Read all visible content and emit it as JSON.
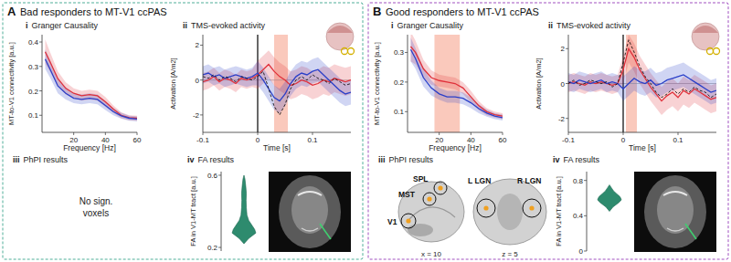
{
  "panels": [
    {
      "letter": "A",
      "title": "Bad responders to MT-V1 ccPAS",
      "phpi": {
        "numeral": "iii",
        "title": "PhPI results",
        "text": [
          "No sign.",
          "voxels"
        ]
      }
    },
    {
      "letter": "B",
      "title": "Good responders to MT-V1 ccPAS",
      "phpi": {
        "numeral": "iii",
        "title": "PhPI results",
        "regions": [
          "SPL",
          "MST",
          "V1",
          "L LGN",
          "R LGN"
        ],
        "slices": [
          "x = 10",
          "z = 5"
        ]
      }
    }
  ],
  "chart_data": [
    {
      "type": "line",
      "numeral": "i",
      "title": "Granger Causality",
      "xlabel": "Frequency [Hz]",
      "ylabel": "MT-to-V1 connectivity [a.u.]",
      "x": [
        2,
        5,
        10,
        15,
        20,
        25,
        30,
        35,
        40,
        45,
        50,
        55,
        60
      ],
      "xlim": [
        0,
        60
      ],
      "xticks": [
        20,
        40,
        60
      ],
      "ylim": [
        0.03,
        0.43
      ],
      "yticks": [
        0.1,
        0.2,
        0.3,
        0.4
      ],
      "series": [
        {
          "color": "#e0303a",
          "values": [
            0.36,
            0.32,
            0.25,
            0.21,
            0.19,
            0.18,
            0.185,
            0.18,
            0.155,
            0.125,
            0.1,
            0.09,
            0.088
          ],
          "band": [
            0.05,
            0.04,
            0.03,
            0.025,
            0.02,
            0.02,
            0.02,
            0.02,
            0.02,
            0.015,
            0.012,
            0.01,
            0.01
          ]
        },
        {
          "color": "#2a3fc8",
          "values": [
            0.33,
            0.29,
            0.22,
            0.19,
            0.17,
            0.165,
            0.17,
            0.165,
            0.14,
            0.115,
            0.098,
            0.088,
            0.085
          ],
          "band": [
            0.04,
            0.035,
            0.03,
            0.025,
            0.02,
            0.02,
            0.02,
            0.02,
            0.018,
            0.015,
            0.012,
            0.01,
            0.01
          ]
        }
      ]
    },
    {
      "type": "line",
      "numeral": "ii",
      "title": "TMS-evoked activity",
      "xlabel": "Time [s]",
      "ylabel": "Activation [A/m2]",
      "x": [
        -0.1,
        -0.09,
        -0.08,
        -0.07,
        -0.06,
        -0.05,
        -0.04,
        -0.03,
        -0.02,
        -0.01,
        0,
        0.01,
        0.02,
        0.03,
        0.04,
        0.05,
        0.06,
        0.07,
        0.08,
        0.09,
        0.1,
        0.11,
        0.12,
        0.13,
        0.14,
        0.15,
        0.16,
        0.17
      ],
      "xlim": [
        -0.1,
        0.17
      ],
      "xticks": [
        -0.1,
        0,
        0.1
      ],
      "ylim": [
        -3,
        2.6
      ],
      "yticks": [
        -2,
        0,
        2
      ],
      "shaded_range": [
        0.03,
        0.055
      ],
      "vline": 0,
      "hline": 0,
      "series": [
        {
          "color": "#e0303a",
          "values": [
            -0.1,
            0,
            0.2,
            -0.1,
            0.1,
            0,
            -0.2,
            0.1,
            0,
            0.1,
            0.3,
            0.6,
            0.9,
            0.5,
            0.2,
            0,
            -0.3,
            -0.2,
            0,
            -0.1,
            -0.3,
            -0.2,
            0,
            -0.1,
            0.1,
            0,
            -0.1,
            0
          ],
          "band": [
            0.5,
            0.5,
            0.5,
            0.5,
            0.5,
            0.5,
            0.5,
            0.5,
            0.5,
            0.5,
            0.8,
            0.8,
            0.8,
            0.8,
            0.8,
            0.8,
            0.8,
            0.8,
            0.8,
            0.8,
            0.8,
            0.8,
            0.8,
            0.8,
            0.8,
            0.8,
            0.8,
            0.8
          ]
        },
        {
          "color": "#2a3fc8",
          "values": [
            0.3,
            0.4,
            0.2,
            0.3,
            0.1,
            0.2,
            0.3,
            0.2,
            0.1,
            0.2,
            0.4,
            0,
            -0.5,
            -1,
            -1.2,
            -0.8,
            -0.2,
            0.2,
            0.4,
            0.3,
            0.5,
            0.6,
            0.3,
            0,
            -0.3,
            -0.6,
            -0.8,
            -0.7
          ],
          "band": [
            0.5,
            0.5,
            0.5,
            0.5,
            0.5,
            0.5,
            0.5,
            0.5,
            0.5,
            0.5,
            0.7,
            0.7,
            0.7,
            0.7,
            0.7,
            0.7,
            0.7,
            0.7,
            0.7,
            0.7,
            0.7,
            0.7,
            0.7,
            0.7,
            0.7,
            0.7,
            0.7,
            0.7
          ]
        },
        {
          "color": "#000000",
          "line_style": "dashed",
          "values": [
            0.2,
            0.1,
            0.3,
            0,
            0.2,
            0.1,
            -0.1,
            0.2,
            0.1,
            0,
            0.2,
            0.5,
            -0.5,
            -1.5,
            -2,
            -1.4,
            -0.5,
            0,
            0.2,
            0,
            0.3,
            0.1,
            0,
            -0.2,
            0.1,
            -0.1,
            -0.3,
            -0.2
          ]
        }
      ]
    },
    {
      "type": "violin",
      "numeral": "iv",
      "title": "FA results",
      "ylabel": "FA in V1-MT tract [a.u.]",
      "color": "#2e8b6e",
      "ylim": [
        0.18,
        0.62
      ],
      "yticks": [
        0.2,
        0.6
      ],
      "y": [
        0.22,
        0.25,
        0.28,
        0.3,
        0.32,
        0.35,
        0.38,
        0.42,
        0.46,
        0.5,
        0.54,
        0.58,
        0.6
      ],
      "density": [
        0,
        0.4,
        1,
        0.9,
        0.7,
        0.4,
        0.25,
        0.2,
        0.18,
        0.2,
        0.15,
        0.08,
        0
      ]
    },
    {
      "type": "line",
      "numeral": "i",
      "title": "Granger Causality",
      "xlabel": "Frequency [Hz]",
      "ylabel": "MT-to-V1 connectivity [a.u.]",
      "x": [
        2,
        5,
        10,
        15,
        20,
        25,
        30,
        35,
        40,
        45,
        50,
        55,
        60
      ],
      "xlim": [
        0,
        60
      ],
      "xticks": [
        20,
        40,
        60
      ],
      "ylim": [
        0.03,
        0.36
      ],
      "yticks": [
        0.1,
        0.2,
        0.3
      ],
      "shaded_range": [
        17,
        33
      ],
      "series": [
        {
          "color": "#e0303a",
          "values": [
            0.32,
            0.3,
            0.245,
            0.215,
            0.205,
            0.2,
            0.195,
            0.18,
            0.15,
            0.12,
            0.1,
            0.09,
            0.085
          ],
          "band": [
            0.05,
            0.04,
            0.03,
            0.025,
            0.02,
            0.02,
            0.02,
            0.02,
            0.02,
            0.015,
            0.012,
            0.01,
            0.01
          ]
        },
        {
          "color": "#2a3fc8",
          "values": [
            0.31,
            0.28,
            0.215,
            0.18,
            0.16,
            0.15,
            0.15,
            0.145,
            0.13,
            0.11,
            0.095,
            0.085,
            0.08
          ],
          "band": [
            0.04,
            0.035,
            0.03,
            0.025,
            0.02,
            0.02,
            0.02,
            0.02,
            0.018,
            0.015,
            0.012,
            0.01,
            0.01
          ]
        }
      ]
    },
    {
      "type": "line",
      "numeral": "ii",
      "title": "TMS-evoked activity",
      "xlabel": "Time [s]",
      "ylabel": "Activation [A/m2]",
      "x": [
        -0.1,
        -0.09,
        -0.08,
        -0.07,
        -0.06,
        -0.05,
        -0.04,
        -0.03,
        -0.02,
        -0.01,
        0,
        0.01,
        0.02,
        0.03,
        0.04,
        0.05,
        0.06,
        0.07,
        0.08,
        0.09,
        0.1,
        0.11,
        0.12,
        0.13,
        0.14,
        0.15,
        0.16,
        0.17
      ],
      "xlim": [
        -0.1,
        0.17
      ],
      "xticks": [
        -0.1,
        0,
        0.1
      ],
      "ylim": [
        -2.8,
        2.8
      ],
      "yticks": [
        -2,
        0,
        2
      ],
      "shaded_range": [
        0.005,
        0.025
      ],
      "vline": 0,
      "hline": 0,
      "series": [
        {
          "color": "#e0303a",
          "values": [
            0,
            0.1,
            0,
            -0.1,
            0.1,
            0,
            0.1,
            0,
            -0.1,
            0,
            0.8,
            2,
            1.5,
            0.8,
            0.3,
            -0.2,
            -0.6,
            -1,
            -0.7,
            -0.5,
            -0.8,
            -0.4,
            -0.6,
            -0.3,
            -0.5,
            -0.7,
            -0.9,
            -0.8
          ],
          "band": [
            0.5,
            0.5,
            0.5,
            0.5,
            0.5,
            0.5,
            0.5,
            0.5,
            0.5,
            0.5,
            0.8,
            0.8,
            0.8,
            0.8,
            0.8,
            0.8,
            0.8,
            0.8,
            0.8,
            0.8,
            0.8,
            0.8,
            0.8,
            0.8,
            0.8,
            0.8,
            0.8,
            0.8
          ]
        },
        {
          "color": "#2a3fc8",
          "values": [
            0.1,
            0,
            0.2,
            0.1,
            0,
            0.1,
            0.2,
            0,
            0.1,
            0,
            -0.3,
            0,
            0.3,
            0.1,
            0,
            0.2,
            -0.1,
            0,
            0.2,
            0.3,
            0.4,
            0.5,
            0.3,
            0.1,
            -0.1,
            -0.3,
            -0.5,
            -0.4
          ],
          "band": [
            0.5,
            0.5,
            0.5,
            0.5,
            0.5,
            0.5,
            0.5,
            0.5,
            0.5,
            0.5,
            0.7,
            0.7,
            0.7,
            0.7,
            0.7,
            0.7,
            0.7,
            0.7,
            0.7,
            0.7,
            0.7,
            0.7,
            0.7,
            0.7,
            0.7,
            0.7,
            0.7,
            0.7
          ]
        },
        {
          "color": "#000000",
          "line_style": "dashed",
          "values": [
            0,
            0.2,
            -0.1,
            0,
            0.2,
            0.1,
            0,
            0.1,
            -0.2,
            0,
            1.2,
            2.5,
            1.8,
            1,
            0.4,
            0,
            -0.5,
            -0.8,
            -0.6,
            -0.3,
            -0.6,
            -0.3,
            -0.5,
            -0.2,
            -0.4,
            -0.5,
            -0.8,
            -0.6
          ]
        }
      ]
    },
    {
      "type": "violin",
      "numeral": "iv",
      "title": "FA results",
      "ylabel": "FA in V1-MT tract [a.u.]",
      "color": "#2e8b6e",
      "ylim": [
        0,
        0.9
      ],
      "yticks": [
        0,
        0.4,
        0.8
      ],
      "y": [
        0.45,
        0.5,
        0.55,
        0.58,
        0.6,
        0.62,
        0.65,
        0.68,
        0.72,
        0.75
      ],
      "density": [
        0,
        0.3,
        0.8,
        1,
        0.95,
        0.85,
        0.6,
        0.35,
        0.15,
        0
      ]
    }
  ]
}
